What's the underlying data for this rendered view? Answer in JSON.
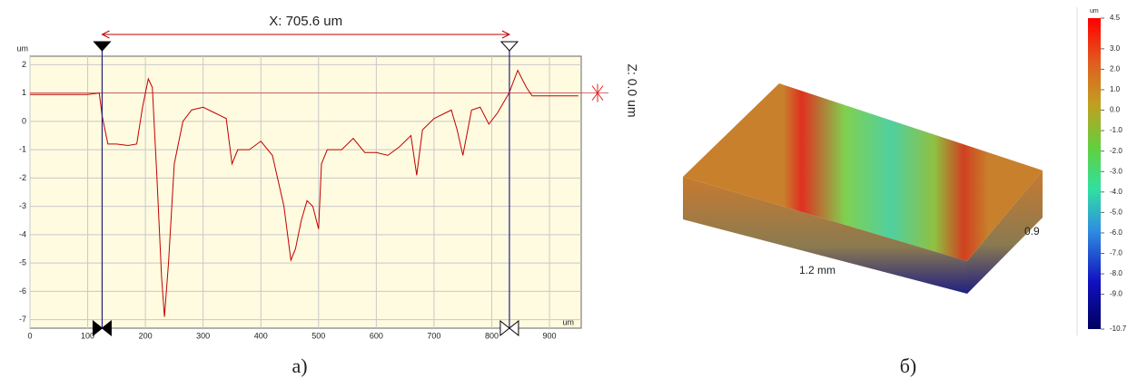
{
  "chart_data": [
    {
      "type": "line",
      "caption": "а)",
      "measure_label": "X: 705.6 um",
      "z_label": "Z: 0.0 um",
      "y_unit": "um",
      "x_unit": "um",
      "color": "#c00000",
      "grid": true,
      "x": [
        0,
        50,
        100,
        120,
        125,
        135,
        150,
        170,
        185,
        195,
        205,
        212,
        220,
        228,
        233,
        240,
        250,
        265,
        280,
        300,
        320,
        340,
        350,
        360,
        380,
        400,
        420,
        440,
        452,
        460,
        470,
        480,
        490,
        500,
        505,
        515,
        540,
        560,
        580,
        600,
        620,
        640,
        660,
        670,
        680,
        700,
        720,
        730,
        740,
        750,
        765,
        780,
        795,
        810,
        830,
        845,
        860,
        870,
        900,
        950
      ],
      "values": [
        0.95,
        0.95,
        0.95,
        1.0,
        0.2,
        -0.8,
        -0.8,
        -0.85,
        -0.8,
        0.5,
        1.5,
        1.2,
        -2,
        -5.5,
        -6.9,
        -5,
        -1.5,
        0.0,
        0.4,
        0.5,
        0.3,
        0.1,
        -1.5,
        -1.0,
        -1.0,
        -0.7,
        -1.2,
        -3,
        -4.9,
        -4.5,
        -3.5,
        -2.8,
        -3,
        -3.8,
        -1.5,
        -1.0,
        -1.0,
        -0.6,
        -1.1,
        -1.1,
        -1.2,
        -0.9,
        -0.5,
        -1.9,
        -0.3,
        0.1,
        0.3,
        0.4,
        -0.3,
        -1.2,
        0.4,
        0.5,
        -0.1,
        0.3,
        1.0,
        1.8,
        1.2,
        0.9,
        0.9,
        0.9
      ],
      "reference_y": 1,
      "cursors": [
        125,
        830.6
      ],
      "xlim": [
        0,
        955
      ],
      "ylim": [
        -7.3,
        2.3
      ],
      "xticks": [
        0,
        100,
        200,
        300,
        400,
        500,
        600,
        700,
        800,
        900
      ],
      "yticks": [
        2,
        1,
        0,
        -1,
        -2,
        -3,
        -4,
        -5,
        -6,
        -7
      ]
    },
    {
      "type": "surface",
      "caption": "б)",
      "x_label": "1.2 mm",
      "y_label": "0.9",
      "colorbar_unit": "um",
      "colorlim": [
        -10.7,
        4.5
      ],
      "colorbar_ticks": [
        4.5,
        {
          "value": 3,
          "label": "3.0"
        },
        {
          "value": 2,
          "label": "2.0"
        },
        {
          "value": 1,
          "label": "1.0"
        },
        {
          "value": 0,
          "label": "0.0"
        },
        {
          "value": -1,
          "label": "-1.0"
        },
        {
          "value": -2,
          "label": "-2.0"
        },
        {
          "value": -3,
          "label": "-3.0"
        },
        {
          "value": -4,
          "label": "-4.0"
        },
        {
          "value": -5,
          "label": "-5.0"
        },
        {
          "value": -6,
          "label": "-6.0"
        },
        {
          "value": -7,
          "label": "-7.0"
        },
        {
          "value": -8,
          "label": "-8.0"
        },
        {
          "value": -9,
          "label": "-9.0"
        },
        -10.7
      ]
    }
  ]
}
